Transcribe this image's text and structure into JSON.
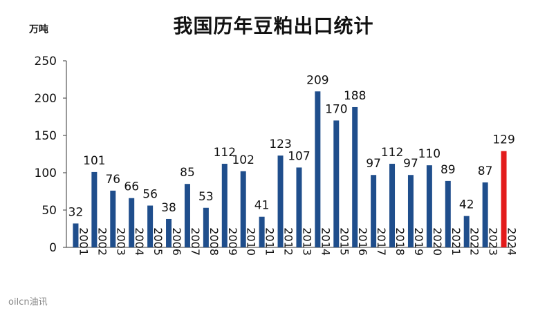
{
  "title": "我国历年豆粕出口统计",
  "unit_label": "万吨",
  "watermark": "oilcn油讯",
  "colors": {
    "bar": "#1f4e8c",
    "highlight": "#e31b1b",
    "axis": "#333333"
  },
  "chart_data": {
    "type": "bar",
    "title": "我国历年豆粕出口统计",
    "ylabel": "万吨",
    "xlabel": "",
    "ylim": [
      0,
      250
    ],
    "yticks": [
      0,
      50,
      100,
      150,
      200,
      250
    ],
    "grid": false,
    "categories": [
      "2001",
      "2002",
      "2003",
      "2004",
      "2005",
      "2006",
      "2007",
      "2008",
      "2009",
      "2010",
      "2011",
      "2012",
      "2013",
      "2014",
      "2015",
      "2016",
      "2017",
      "2018",
      "2019",
      "2020",
      "2021",
      "2022",
      "2023",
      "2024"
    ],
    "values": [
      32,
      101,
      76,
      66,
      56,
      38,
      85,
      53,
      112,
      102,
      41,
      123,
      107,
      209,
      170,
      188,
      97,
      112,
      97,
      110,
      89,
      42,
      87,
      129
    ],
    "highlight_category": "2024"
  }
}
